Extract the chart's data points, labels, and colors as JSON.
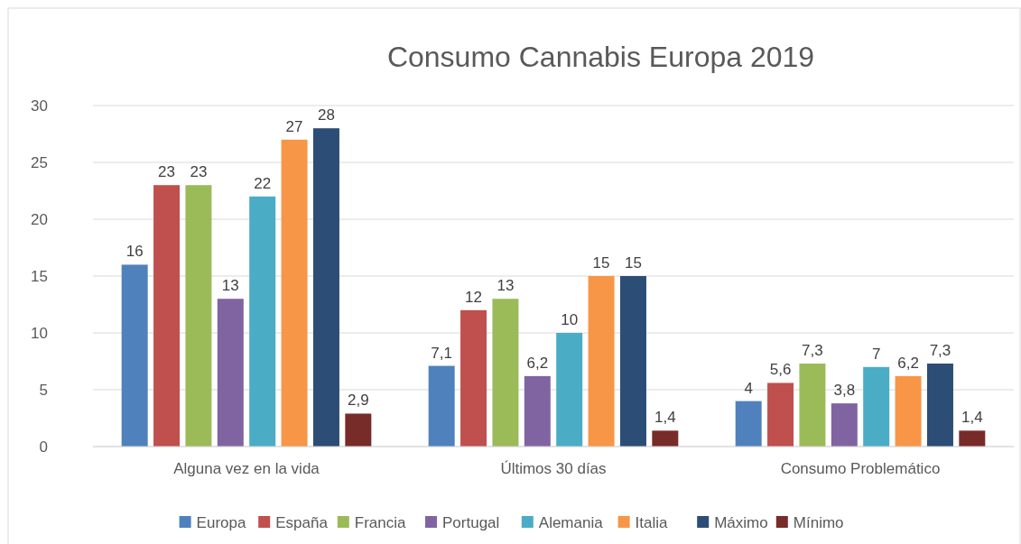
{
  "chart_data": {
    "type": "bar",
    "title": "Consumo Cannabis Europa 2019",
    "categories": [
      "Alguna vez en la vida",
      "Últimos 30 días",
      "Consumo Problemático"
    ],
    "series": [
      {
        "name": "Europa",
        "color": "#4f81bd",
        "values": [
          16,
          7.1,
          4
        ],
        "value_labels": [
          "16",
          "7,1",
          "4"
        ]
      },
      {
        "name": "España",
        "color": "#c0504d",
        "values": [
          23,
          12,
          5.6
        ],
        "value_labels": [
          "23",
          "12",
          "5,6"
        ]
      },
      {
        "name": "Francia",
        "color": "#9bbb59",
        "values": [
          23,
          13,
          7.3
        ],
        "value_labels": [
          "23",
          "13",
          "7,3"
        ]
      },
      {
        "name": "Portugal",
        "color": "#8064a2",
        "values": [
          13,
          6.2,
          3.8
        ],
        "value_labels": [
          "13",
          "6,2",
          "3,8"
        ]
      },
      {
        "name": "Alemania",
        "color": "#4bacc6",
        "values": [
          22,
          10,
          7
        ],
        "value_labels": [
          "22",
          "10",
          "7"
        ]
      },
      {
        "name": "Italia",
        "color": "#f79646",
        "values": [
          27,
          15,
          6.2
        ],
        "value_labels": [
          "27",
          "15",
          "6,2"
        ]
      },
      {
        "name": "Máximo",
        "color": "#2c4d75",
        "values": [
          28,
          15,
          7.3
        ],
        "value_labels": [
          "28",
          "15",
          "7,3"
        ]
      },
      {
        "name": "Mínimo",
        "color": "#772c2a",
        "values": [
          2.9,
          1.4,
          1.4
        ],
        "value_labels": [
          "2,9",
          "1,4",
          "1,4"
        ]
      }
    ],
    "ylim": [
      0,
      30
    ],
    "yticks": [
      0,
      5,
      10,
      15,
      20,
      25,
      30
    ],
    "grid": "y",
    "legend": "bottom"
  }
}
